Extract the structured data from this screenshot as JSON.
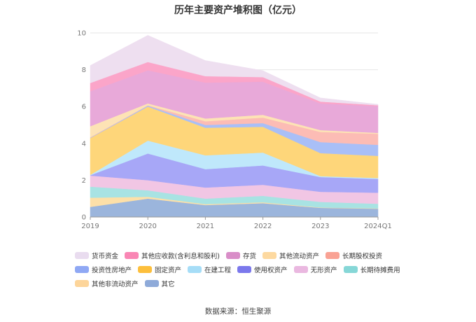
{
  "chart_data": {
    "type": "area",
    "stacked": true,
    "title": "历年主要资产堆积图（亿元）",
    "x": [
      "2019",
      "2020",
      "2021",
      "2022",
      "2023",
      "2024Q1"
    ],
    "ylim": [
      0,
      10
    ],
    "yticks": [
      0,
      2,
      4,
      6,
      8,
      10
    ],
    "grid": true,
    "legend_position": "bottom",
    "series": [
      {
        "name": "其它",
        "color": "#9bb5dc",
        "values": [
          0.55,
          1.0,
          0.65,
          0.75,
          0.5,
          0.45
        ]
      },
      {
        "name": "其他非流动资产",
        "color": "#fde0a8",
        "values": [
          0.5,
          0.1,
          0.05,
          0.05,
          0.02,
          0.02
        ]
      },
      {
        "name": "长期待摊费用",
        "color": "#a8e3e3",
        "values": [
          0.6,
          0.35,
          0.3,
          0.35,
          0.3,
          0.25
        ]
      },
      {
        "name": "无形资产",
        "color": "#f1c6e4",
        "values": [
          0.6,
          0.55,
          0.6,
          0.6,
          0.55,
          0.6
        ]
      },
      {
        "name": "使用权资产",
        "color": "#a7a7f7",
        "values": [
          0.02,
          1.45,
          1.0,
          1.05,
          0.8,
          0.75
        ]
      },
      {
        "name": "在建工程",
        "color": "#bfe8fb",
        "values": [
          0.02,
          0.7,
          0.75,
          0.7,
          0.05,
          0.05
        ]
      },
      {
        "name": "固定资产",
        "color": "#fed67a",
        "values": [
          2.0,
          1.85,
          1.5,
          1.4,
          1.25,
          1.2
        ]
      },
      {
        "name": "投资性房地产",
        "color": "#a9bff7",
        "values": [
          0.02,
          0.05,
          0.15,
          0.2,
          0.6,
          0.6
        ]
      },
      {
        "name": "长期股权投资",
        "color": "#fcbcb5",
        "values": [
          0.02,
          0.02,
          0.2,
          0.3,
          0.55,
          0.6
        ]
      },
      {
        "name": "其他流动资产",
        "color": "#fde3b5",
        "values": [
          0.6,
          0.1,
          0.15,
          0.15,
          0.1,
          0.05
        ]
      },
      {
        "name": "存货",
        "color": "#e8a9d9",
        "values": [
          1.9,
          1.8,
          1.95,
          1.8,
          1.45,
          1.45
        ]
      },
      {
        "name": "其他应收款(含利息和股利)",
        "color": "#fba5c9",
        "values": [
          0.45,
          0.45,
          0.35,
          0.25,
          0.1,
          0.05
        ]
      },
      {
        "name": "货币资金",
        "color": "#eedff0",
        "values": [
          0.95,
          1.45,
          0.85,
          0.35,
          0.2,
          0.05
        ]
      }
    ]
  },
  "legend_order": [
    "货币资金",
    "其他应收款(含利息和股利)",
    "存货",
    "其他流动资产",
    "长期股权投资",
    "投资性房地产",
    "固定资产",
    "在建工程",
    "使用权资产",
    "无形资产",
    "长期待摊费用",
    "其他非流动资产",
    "其它"
  ],
  "legend_colors": {
    "货币资金": "#e9dcef",
    "其他应收款(含利息和股利)": "#f986b4",
    "存货": "#d98ec8",
    "其他流动资产": "#fdd9a0",
    "长期股权投资": "#f9a294",
    "投资性房地产": "#8fa8f4",
    "固定资产": "#fdbf3c",
    "在建工程": "#a6ddf7",
    "使用权资产": "#7b78ec",
    "无形资产": "#eab8e0",
    "长期待摊费用": "#86d7d7",
    "其他非流动资产": "#fdd59a",
    "其它": "#8eaad9"
  },
  "source": "数据来源：恒生聚源"
}
